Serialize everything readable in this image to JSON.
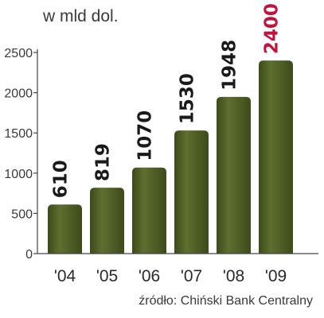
{
  "chart_data": {
    "type": "bar",
    "unit_label": "w mld dol.",
    "categories": [
      "'04",
      "'05",
      "'06",
      "'07",
      "'08",
      "'09"
    ],
    "values": [
      610,
      819,
      1070,
      1530,
      1948,
      2400
    ],
    "value_labels": [
      "610",
      "819",
      "1070",
      "1530",
      "1948",
      "2400"
    ],
    "yticks": [
      "0",
      "500",
      "1000",
      "1500",
      "2000",
      "2500"
    ],
    "ylim": [
      0,
      2500
    ],
    "grid": false,
    "source": "źródło: Chiński Bank Centralny",
    "colors": {
      "bar_light": "#5f6f2e",
      "bar_dark": "#3d4a1a",
      "label": "#1a1a1a",
      "highlight_label": "#c0123c",
      "axis": "#444444"
    }
  }
}
